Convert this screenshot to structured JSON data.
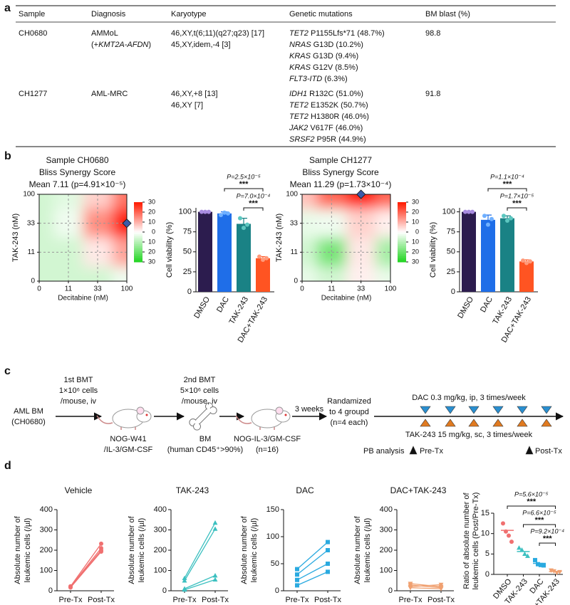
{
  "panel_labels": [
    "a",
    "b",
    "c",
    "d"
  ],
  "table": {
    "headers": [
      "Sample",
      "Diagnosis",
      "Karyotype",
      "Genetic mutations",
      "BM blast (%)"
    ],
    "rows": [
      {
        "sample": "CH0680",
        "diagnosis": [
          [
            "AMMoL"
          ],
          [
            "(+",
            {
              "i": "KMT2A-AFDN"
            },
            ")"
          ]
        ],
        "karyotype": [
          "46,XY,t(6;11)(q27;q23) [17]",
          "45,XY,idem,-4 [3]"
        ],
        "mutations": [
          [
            {
              "i": "TET2"
            },
            " P1155Lfs*71 (48.7%)"
          ],
          [
            {
              "i": "NRAS"
            },
            " G13D (10.2%)"
          ],
          [
            {
              "i": "KRAS"
            },
            " G13D (9.4%)"
          ],
          [
            {
              "i": "KRAS"
            },
            " G12V (8.5%)"
          ],
          [
            {
              "i": "FLT3-ITD"
            },
            " (6.3%)"
          ]
        ],
        "bm_blast": 98.8
      },
      {
        "sample": "CH1277",
        "diagnosis": [
          [
            "AML-MRC"
          ]
        ],
        "karyotype": [
          "46,XY,+8 [13]",
          "46,XY [7]"
        ],
        "mutations": [
          [
            {
              "i": "IDH1"
            },
            " R132C (51.0%)"
          ],
          [
            {
              "i": "TET2"
            },
            " E1352K (50.7%)"
          ],
          [
            {
              "i": "TET2"
            },
            " H1380R (46.0%)"
          ],
          [
            {
              "i": "JAK2"
            },
            " V617F (46.0%)"
          ],
          [
            {
              "i": "SRSF2"
            },
            " P95R (44.9%)"
          ]
        ],
        "bm_blast": 91.8
      }
    ]
  },
  "diagram": {
    "source": [
      "AML BM",
      "(CH0680)"
    ],
    "bmt1": [
      "1st BMT",
      "1×10⁶ cells",
      "/mouse, iv"
    ],
    "mouse1": [
      "NOG-W41",
      "/IL-3/GM-CSF"
    ],
    "bm": [
      "BM",
      "(human CD45⁺>90%)"
    ],
    "bmt2": [
      "2nd BMT",
      "5×10⁶ cells",
      "/mouse, iv"
    ],
    "mouse2": [
      "NOG-IL-3/GM-CSF",
      "(n=16)"
    ],
    "wait": "3 weeks",
    "randomize": [
      "Randamized",
      "to 4 groupd",
      "(n=4 each)"
    ],
    "dac": "DAC 0.3 mg/kg, ip, 3 times/week",
    "tak": "TAK-243 15 mg/kg, sc, 3 times/week",
    "pb": "PB analysis",
    "pre": "Pre-Tx",
    "post": "Post-Tx"
  },
  "chart_data": [
    {
      "type": "heatmap",
      "title": [
        "Sample CH0680",
        "Bliss Synergy Score",
        "Mean 7.11 (p=4.91×10⁻⁵)"
      ],
      "xlabel": "Decitabine (nM)",
      "ylabel": "TAK-243 (nM)",
      "x": [
        0,
        11,
        33,
        100
      ],
      "y": [
        0,
        11,
        33,
        100
      ],
      "grid": true,
      "values": [
        [
          -6,
          -6,
          -6,
          -2
        ],
        [
          -6,
          -6,
          3,
          12
        ],
        [
          -6,
          -2,
          15,
          30
        ],
        [
          -6,
          -4,
          6,
          18
        ]
      ],
      "highlight": {
        "x": 100,
        "y": 33
      },
      "highlight_color": "#3b5ba8",
      "colorbar": {
        "lim": [
          -30,
          30
        ],
        "ticks": [
          30,
          20,
          10,
          0,
          {
            "value": -10,
            "label": "10"
          },
          {
            "value": -20,
            "label": "20"
          },
          {
            "value": -30,
            "label": "30"
          }
        ],
        "negative": "#1fd41f",
        "zero": "#ffffff",
        "positive": "#ff1a00"
      }
    },
    {
      "type": "bar",
      "ylabel": "Cell viability (%)",
      "categories": [
        "DMSO",
        "DAC",
        "TAK-243",
        "DAC+TAK-243"
      ],
      "values": [
        100,
        98,
        85,
        42
      ],
      "errors": [
        0,
        2,
        7,
        2
      ],
      "points": [
        [
          100,
          100,
          100
        ],
        [
          96,
          99,
          98
        ],
        [
          92,
          80,
          84
        ],
        [
          44,
          40,
          42
        ]
      ],
      "colors": [
        "#2c1c4e",
        "#1f6ee8",
        "#1a8285",
        "#ff5422"
      ],
      "point_colors": [
        "#a88be0",
        "#6fb0ff",
        "#5cc7c0",
        "#ff9a7a"
      ],
      "ylim": [
        0,
        105
      ],
      "yticks": [
        0,
        25,
        50,
        75,
        100
      ],
      "comparisons": [
        {
          "groups": [
            1,
            3
          ],
          "p": "P=2.5×10⁻⁵",
          "stars": "***"
        },
        {
          "groups": [
            2,
            3
          ],
          "p": "P=7.0×10⁻⁴",
          "stars": "***"
        }
      ]
    },
    {
      "type": "heatmap",
      "title": [
        "Sample CH1277",
        "Bliss Synergy Score",
        "Mean 11.29 (p=1.73×10⁻⁴)"
      ],
      "xlabel": "Decitabine (nM)",
      "ylabel": "TAK-243 (nM)",
      "x": [
        0,
        11,
        33,
        100
      ],
      "y": [
        0,
        11,
        33,
        100
      ],
      "grid": true,
      "values": [
        [
          -3,
          -6,
          2,
          -3
        ],
        [
          -6,
          -18,
          3,
          -12
        ],
        [
          -3,
          -2,
          6,
          2
        ],
        [
          8,
          20,
          30,
          20
        ]
      ],
      "highlight": {
        "x": 33,
        "y": 100
      },
      "highlight_color": "#3b5ba8",
      "colorbar": {
        "lim": [
          -30,
          30
        ],
        "ticks": [
          30,
          20,
          10,
          0,
          {
            "value": -10,
            "label": "10"
          },
          {
            "value": -20,
            "label": "20"
          },
          {
            "value": -30,
            "label": "30"
          }
        ],
        "negative": "#1fd41f",
        "zero": "#ffffff",
        "positive": "#ff1a00"
      }
    },
    {
      "type": "bar",
      "ylabel": "Cell viability (%)",
      "categories": [
        "DMSO",
        "DAC",
        "TAK-243",
        "DAC+TAK-243"
      ],
      "values": [
        100,
        90,
        92,
        38
      ],
      "errors": [
        0,
        6,
        3,
        2
      ],
      "points": [
        [
          100,
          100,
          100
        ],
        [
          95,
          84,
          91
        ],
        [
          95,
          89,
          92
        ],
        [
          39,
          36,
          38
        ]
      ],
      "colors": [
        "#2c1c4e",
        "#1f6ee8",
        "#1a8285",
        "#ff5422"
      ],
      "point_colors": [
        "#a88be0",
        "#6fb0ff",
        "#5cc7c0",
        "#ff9a7a"
      ],
      "ylim": [
        0,
        105
      ],
      "yticks": [
        0,
        25,
        50,
        75,
        100
      ],
      "comparisons": [
        {
          "groups": [
            1,
            3
          ],
          "p": "P=1.1×10⁻⁴",
          "stars": "***"
        },
        {
          "groups": [
            2,
            3
          ],
          "p": "P=1.7×10⁻⁵",
          "stars": "***"
        }
      ]
    },
    {
      "type": "line",
      "title": "Vehicle",
      "ylabel": [
        "Absolute number of",
        "leukemic cells (/µl)"
      ],
      "categories": [
        "Pre-Tx",
        "Post-Tx"
      ],
      "ylim": [
        0,
        400
      ],
      "yticks": [
        0,
        100,
        200,
        300,
        400
      ],
      "color": "#f07070",
      "marker": "circle",
      "series": [
        {
          "values": [
            22,
            232
          ]
        },
        {
          "values": [
            20,
            210
          ]
        },
        {
          "values": [
            18,
            200
          ]
        },
        {
          "values": [
            16,
            193
          ]
        }
      ]
    },
    {
      "type": "line",
      "title": "TAK-243",
      "ylabel": [
        "Absolute number of",
        "leukemic cells (/µl)"
      ],
      "categories": [
        "Pre-Tx",
        "Post-Tx"
      ],
      "ylim": [
        0,
        400
      ],
      "yticks": [
        0,
        100,
        200,
        300,
        400
      ],
      "color": "#3cc0c0",
      "marker": "triangle-up",
      "series": [
        {
          "values": [
            62,
            335
          ]
        },
        {
          "values": [
            50,
            305
          ]
        },
        {
          "values": [
            10,
            75
          ]
        },
        {
          "values": [
            5,
            55
          ]
        }
      ]
    },
    {
      "type": "line",
      "title": "DAC",
      "ylabel": [
        "Absolute number of",
        "leukemic cells (/µl)"
      ],
      "categories": [
        "Pre-Tx",
        "Post-Tx"
      ],
      "ylim": [
        0,
        150
      ],
      "yticks": [
        0,
        50,
        100,
        150
      ],
      "color": "#2aaae0",
      "marker": "square",
      "series": [
        {
          "values": [
            40,
            90
          ]
        },
        {
          "values": [
            30,
            75
          ]
        },
        {
          "values": [
            20,
            50
          ]
        },
        {
          "values": [
            10,
            35
          ]
        }
      ]
    },
    {
      "type": "line",
      "title": "DAC+TAK-243",
      "ylabel": [
        "Absolute number of",
        "leukemic cells (/µl)"
      ],
      "categories": [
        "Pre-Tx",
        "Post-Tx"
      ],
      "ylim": [
        0,
        400
      ],
      "yticks": [
        0,
        100,
        200,
        300,
        400
      ],
      "color": "#f0a070",
      "marker": "triangle-down",
      "series": [
        {
          "values": [
            35,
            20
          ]
        },
        {
          "values": [
            28,
            15
          ]
        },
        {
          "values": [
            20,
            30
          ]
        },
        {
          "values": [
            15,
            10
          ]
        }
      ]
    },
    {
      "type": "strip",
      "ylabel": [
        "Ratio of absolute number of",
        "leukemic cells (Post/Pre-Tx)"
      ],
      "categories": [
        "DMSO",
        "TAK-243",
        "DAC",
        "DAC+TAK-243"
      ],
      "points": [
        [
          12.5,
          10.5,
          9.5,
          8
        ],
        [
          6.5,
          6,
          5,
          4.5
        ],
        [
          3.5,
          2.5,
          2.3,
          2.2
        ],
        [
          1,
          0.8,
          0.4,
          0.6
        ]
      ],
      "means": [
        10.8,
        5.6,
        2.7,
        0.7
      ],
      "colors": [
        "#f07070",
        "#3cc0c0",
        "#2aaae0",
        "#f0a070"
      ],
      "markers": [
        "circle",
        "triangle-up",
        "square",
        "triangle-down"
      ],
      "ylim": [
        0,
        15
      ],
      "yticks": [
        0,
        5,
        10,
        15
      ],
      "comparisons": [
        {
          "groups": [
            0,
            3
          ],
          "p": "P=5.6×10⁻⁵",
          "stars": "***"
        },
        {
          "groups": [
            1,
            3
          ],
          "p": "P=6.6×10⁻⁵",
          "stars": "***"
        },
        {
          "groups": [
            2,
            3
          ],
          "p": "P=9.2×10⁻⁴",
          "stars": "***"
        }
      ]
    }
  ]
}
